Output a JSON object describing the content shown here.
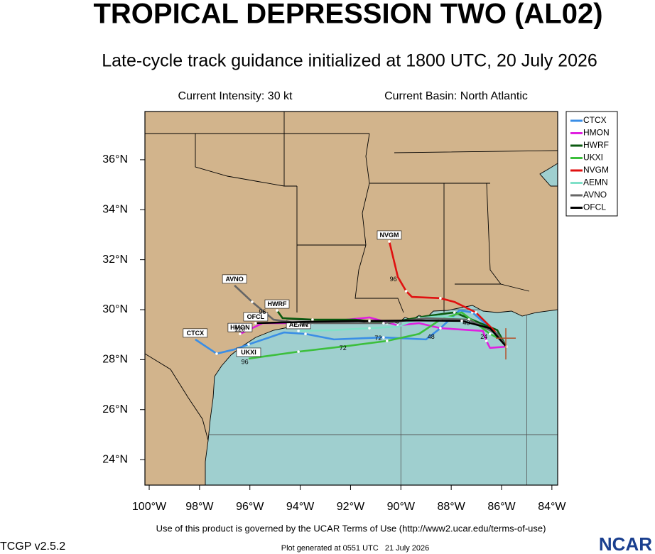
{
  "chart_data": {
    "type": "track",
    "title": "TROPICAL DEPRESSION TWO (AL02)",
    "subtitle": "Late-cycle track guidance initialized at 1800 UTC, 20 July 2026",
    "intensity": "Current Intensity: 30 kt",
    "basin": "Current Basin: North Atlantic",
    "terms": "Use of this product is governed by the UCAR Terms of Use (http://www2.ucar.edu/terms-of-use)",
    "version": "TCGP v2.5.2",
    "generated": "Plot generated at 0551 UTC   21 July 2026",
    "logo": "NCAR",
    "xlim": [
      -100.17,
      -83.77
    ],
    "ylim": [
      22.98,
      37.93
    ],
    "xticks": [
      {
        "value": -100,
        "label": "100°W"
      },
      {
        "value": -98,
        "label": "98°W"
      },
      {
        "value": -96,
        "label": "96°W"
      },
      {
        "value": -94,
        "label": "94°W"
      },
      {
        "value": -92,
        "label": "92°W"
      },
      {
        "value": -90,
        "label": "90°W"
      },
      {
        "value": -88,
        "label": "88°W"
      },
      {
        "value": -86,
        "label": "86°W"
      },
      {
        "value": -84,
        "label": "84°W"
      }
    ],
    "yticks": [
      {
        "value": 24,
        "label": "24°N"
      },
      {
        "value": 26,
        "label": "26°N"
      },
      {
        "value": 28,
        "label": "28°N"
      },
      {
        "value": 30,
        "label": "30°N"
      },
      {
        "value": 32,
        "label": "32°N"
      },
      {
        "value": 34,
        "label": "34°N"
      },
      {
        "value": 36,
        "label": "36°N"
      }
    ],
    "grid": {
      "lon": [
        -90,
        -85
      ],
      "lat": [
        25,
        30
      ]
    },
    "current_position": {
      "lon": -85.83,
      "lat": 28.86,
      "color": "#b5502a"
    },
    "series": [
      {
        "name": "CTCX",
        "color": "#3a8ee6",
        "lon": [
          -85.81,
          -86.17,
          -87.16,
          -87.67,
          -88.43,
          -89.0,
          -90.69,
          -92.66,
          -93.79,
          -94.64,
          -96.05,
          -96.61,
          -97.32,
          -98.17
        ],
        "lat": [
          28.52,
          29.03,
          29.89,
          29.97,
          29.26,
          28.81,
          28.89,
          28.81,
          29.03,
          29.09,
          28.61,
          28.41,
          28.24,
          28.81
        ]
      },
      {
        "name": "HMON",
        "color": "#e020e0",
        "lon": [
          -85.81,
          -86.46,
          -86.6,
          -86.74,
          -88.43,
          -89.28,
          -90.12,
          -91.25,
          -93.51,
          -95.49,
          -96.39
        ],
        "lat": [
          28.52,
          28.47,
          28.75,
          29.15,
          29.26,
          29.46,
          29.37,
          29.69,
          29.46,
          29.46,
          29.03
        ]
      },
      {
        "name": "HWRF",
        "color": "#0b5a10",
        "lon": [
          -85.81,
          -86.17,
          -87.87,
          -89.0,
          -90.55,
          -91.82,
          -93.51,
          -94.7,
          -94.92
        ],
        "lat": [
          28.52,
          29.18,
          29.89,
          29.74,
          29.46,
          29.6,
          29.6,
          29.66,
          29.97
        ]
      },
      {
        "name": "UKXI",
        "color": "#3cbf3c",
        "lon": [
          -85.81,
          -86.03,
          -86.46,
          -87.58,
          -88.43,
          -89.28,
          -90.55,
          -92.1,
          -94.07,
          -96.05
        ],
        "lat": [
          28.52,
          28.81,
          29.03,
          29.89,
          29.6,
          29.03,
          28.75,
          28.55,
          28.32,
          28.04
        ]
      },
      {
        "name": "NVGM",
        "color": "#e01010",
        "lon": [
          -85.81,
          -86.31,
          -87.02,
          -87.87,
          -88.43,
          -89.56,
          -89.79,
          -90.12,
          -90.46
        ],
        "lat": [
          28.52,
          29.18,
          29.89,
          30.31,
          30.46,
          30.51,
          30.74,
          31.31,
          32.73
        ]
      },
      {
        "name": "AEMN",
        "color": "#7fe0c8",
        "lon": [
          -85.81,
          -86.17,
          -87.3,
          -88.43,
          -89.28,
          -90.12,
          -91.25,
          -92.66,
          -94.07
        ],
        "lat": [
          28.52,
          29.03,
          29.6,
          29.74,
          29.66,
          29.32,
          29.26,
          29.18,
          29.15
        ]
      },
      {
        "name": "AVNO",
        "color": "#666666",
        "lon": [
          -85.81,
          -86.17,
          -87.3,
          -89.0,
          -90.69,
          -92.38,
          -94.07,
          -95.06,
          -95.91,
          -96.61
        ],
        "lat": [
          28.52,
          29.03,
          29.6,
          29.66,
          29.46,
          29.46,
          29.46,
          29.6,
          30.31,
          30.97
        ]
      },
      {
        "name": "OFCL",
        "color": "#000000",
        "lon": [
          -85.81,
          -86.46,
          -87.58,
          -89.28,
          -91.25,
          -93.51,
          -95.77
        ],
        "lat": [
          28.52,
          29.26,
          29.55,
          29.57,
          29.55,
          29.52,
          29.46
        ]
      }
    ],
    "time_labels": [
      {
        "text": "96",
        "lon": -90.3,
        "lat": 31.2
      },
      {
        "text": "96",
        "lon": -95.5,
        "lat": 29.9
      },
      {
        "text": "120",
        "lon": -96.4,
        "lat": 29.2
      },
      {
        "text": "96",
        "lon": -96.2,
        "lat": 27.9
      },
      {
        "text": "72",
        "lon": -92.3,
        "lat": 28.45
      },
      {
        "text": "72",
        "lon": -90.9,
        "lat": 28.85
      },
      {
        "text": "72",
        "lon": -93.8,
        "lat": 29.4
      },
      {
        "text": "48",
        "lon": -88.8,
        "lat": 28.9
      },
      {
        "text": "48",
        "lon": -87.4,
        "lat": 29.45
      },
      {
        "text": "24",
        "lon": -86.7,
        "lat": 28.9
      }
    ]
  }
}
